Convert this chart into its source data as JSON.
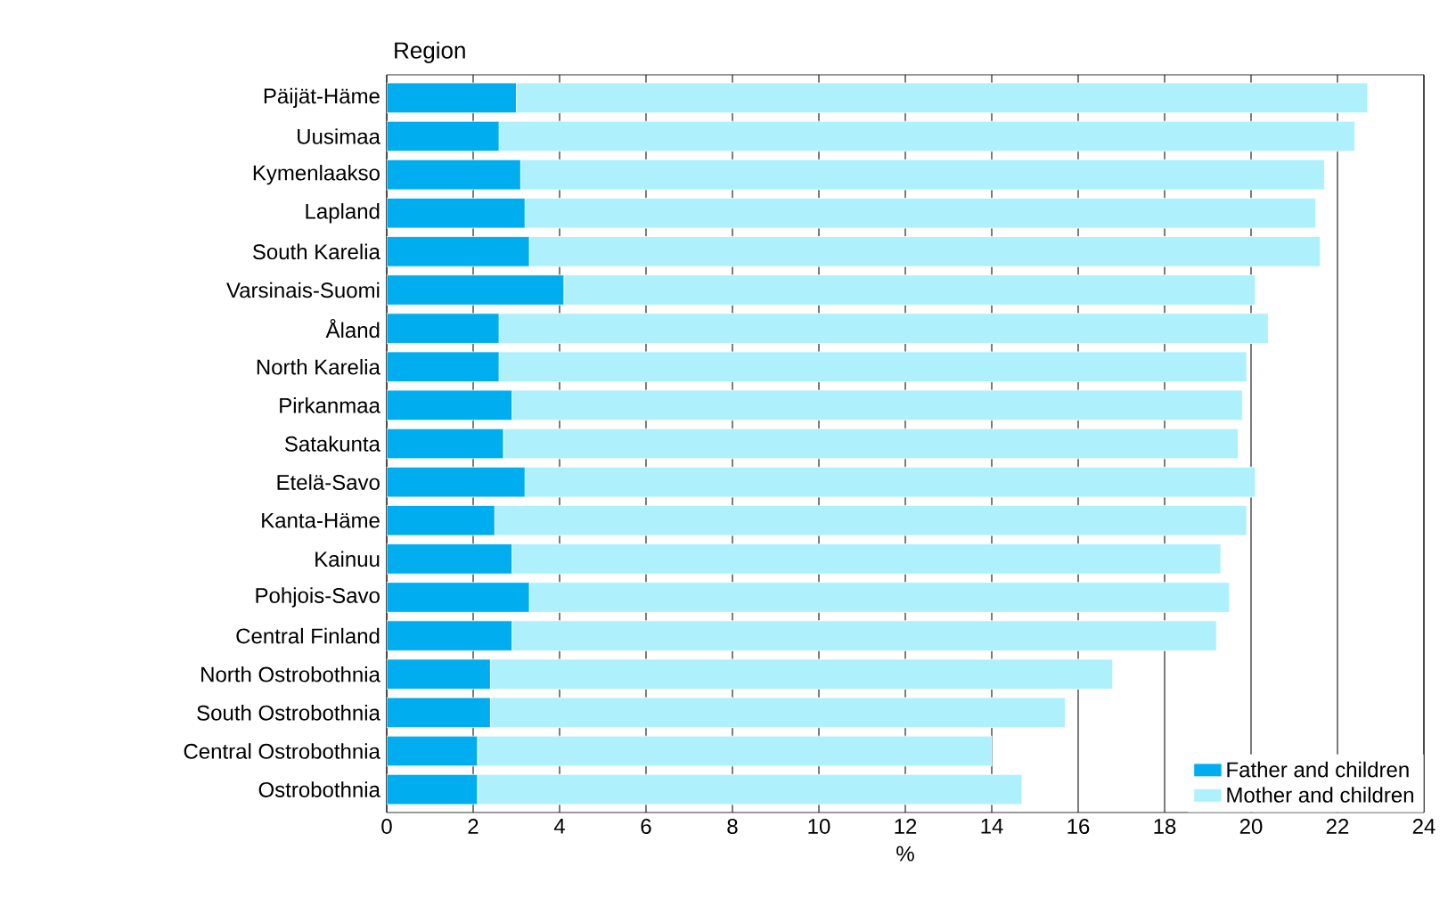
{
  "chart_data": {
    "type": "bar",
    "orientation": "horizontal",
    "stacked": true,
    "ylabel": "Region",
    "xlabel": "%",
    "categories": [
      "Päijät-Häme",
      "Uusimaa",
      "Kymenlaakso",
      "Lapland",
      "South Karelia",
      "Varsinais-Suomi",
      "Åland",
      "North Karelia",
      "Pirkanmaa",
      "Satakunta",
      "Etelä-Savo",
      "Kanta-Häme",
      "Kainuu",
      "Pohjois-Savo",
      "Central Finland",
      "North Ostrobothnia",
      "South Ostrobothnia",
      "Central Ostrobothnia",
      "Ostrobothnia"
    ],
    "series": [
      {
        "name": "Father and children",
        "color": "#00aeef",
        "values": [
          3.0,
          2.6,
          3.1,
          3.2,
          3.3,
          4.1,
          2.6,
          2.6,
          2.9,
          2.7,
          3.2,
          2.5,
          2.9,
          3.3,
          2.9,
          2.4,
          2.4,
          2.1,
          2.1
        ]
      },
      {
        "name": "Mother and children",
        "color": "#aef0fc",
        "values": [
          19.7,
          19.8,
          18.6,
          18.3,
          18.3,
          16.0,
          17.8,
          17.3,
          16.9,
          17.0,
          16.9,
          17.4,
          16.4,
          16.2,
          16.3,
          14.4,
          13.3,
          11.9,
          12.6
        ]
      }
    ],
    "xlim": [
      0,
      24
    ],
    "xticks": [
      0,
      2,
      4,
      6,
      8,
      10,
      12,
      14,
      16,
      18,
      20,
      22,
      24
    ],
    "grid": "x",
    "legend": "bottom right"
  }
}
